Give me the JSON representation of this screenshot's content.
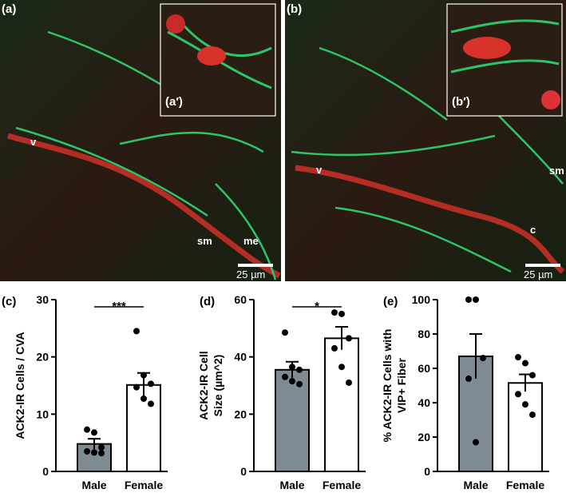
{
  "images": [
    {
      "label": "(a)",
      "inset_label": "(a′)",
      "annotations": [
        "v",
        "sm",
        "me"
      ],
      "scale_bar": "25 µm"
    },
    {
      "label": "(b)",
      "inset_label": "(b′)",
      "annotations": [
        "v",
        "sm",
        "c"
      ],
      "scale_bar": "25 µm"
    }
  ],
  "chart_data": [
    {
      "type": "bar",
      "panel_label": "(c)",
      "ylabel": [
        "ACK2-IR Cells / CVA"
      ],
      "categories": [
        "Male",
        "Female"
      ],
      "values": [
        4.8,
        15.1
      ],
      "errors": [
        0.9,
        2.1
      ],
      "points": [
        [
          7.3,
          6.8,
          4.2,
          3.5,
          3.3,
          3.2
        ],
        [
          24.5,
          16.8,
          15.3,
          14.7,
          12.7,
          11.8
        ]
      ],
      "colors": [
        "#7f8b92",
        "#ffffff"
      ],
      "ylim": [
        0,
        30
      ],
      "yticks": [
        0,
        10,
        20,
        30
      ],
      "significance": "***"
    },
    {
      "type": "bar",
      "panel_label": "(d)",
      "ylabel": [
        "ACK2-IR Cell",
        "Size (µm^2)"
      ],
      "categories": [
        "Male",
        "Female"
      ],
      "values": [
        35.5,
        46.5
      ],
      "errors": [
        2.8,
        4
      ],
      "points": [
        [
          48.5,
          36.5,
          35.5,
          33,
          31.5,
          30.5
        ],
        [
          55.5,
          55,
          46.5,
          43,
          36.5,
          31
        ]
      ],
      "colors": [
        "#7f8b92",
        "#ffffff"
      ],
      "ylim": [
        0,
        60
      ],
      "yticks": [
        0,
        20,
        40,
        60
      ],
      "significance": "*"
    },
    {
      "type": "bar",
      "panel_label": "(e)",
      "ylabel": [
        "% ACK2-IR Cells with",
        "VIP+ Fiber"
      ],
      "categories": [
        "Male",
        "Female"
      ],
      "values": [
        67,
        51.5
      ],
      "errors": [
        13,
        5
      ],
      "points": [
        [
          100,
          100,
          66,
          54,
          17
        ],
        [
          66.5,
          63,
          56,
          45,
          39,
          33
        ]
      ],
      "colors": [
        "#7f8b92",
        "#ffffff"
      ],
      "ylim": [
        0,
        100
      ],
      "yticks": [
        0,
        20,
        40,
        60,
        80,
        100
      ]
    }
  ]
}
